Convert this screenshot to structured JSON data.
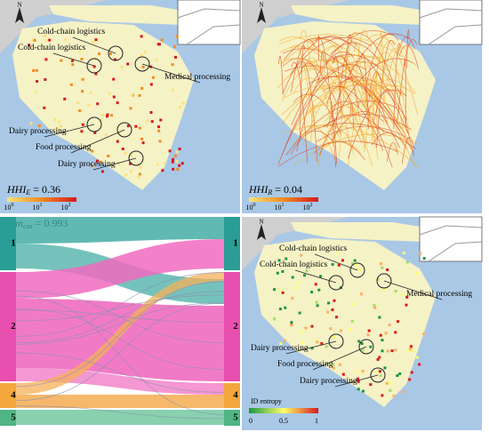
{
  "panels": [
    {
      "compass": "N",
      "annotations": [
        "Cold-chain logistics",
        "Cold-chain logistics",
        "Medical processing",
        "Dairy processing",
        "Food processing",
        "Dairy processing"
      ],
      "metric": {
        "name": "HHI",
        "subscript": "E",
        "text": " = 0.36"
      },
      "legend": {
        "ticks": [
          {
            "base": "10",
            "exponent": "0"
          },
          {
            "base": "10",
            "exponent": "1"
          },
          {
            "base": "10",
            "exponent": "2"
          }
        ]
      }
    },
    {
      "compass": "N",
      "metric": {
        "name": "HHI",
        "subscript": "R",
        "text": " = 0.04"
      },
      "legend": {
        "ticks": [
          {
            "base": "10",
            "exponent": "0"
          },
          {
            "base": "10",
            "exponent": "1"
          },
          {
            "base": "10",
            "exponent": "2"
          }
        ]
      }
    },
    {
      "metric": {
        "name": "Sim",
        "subscript": "cos",
        "text": " = 0.993"
      },
      "left_nodes": [
        "1",
        "2",
        "4",
        "5"
      ],
      "right_nodes": [
        "1",
        "2",
        "4",
        "5"
      ]
    },
    {
      "compass": "N",
      "annotations": [
        "Cold-chain logistics",
        "Cold-chain logistics",
        "Medical processing",
        "Dairy processing",
        "Food processing",
        "Dairy processing"
      ],
      "legend": {
        "title": "ID entropy",
        "ticks": [
          "0",
          "0.5",
          "1"
        ]
      }
    }
  ]
}
